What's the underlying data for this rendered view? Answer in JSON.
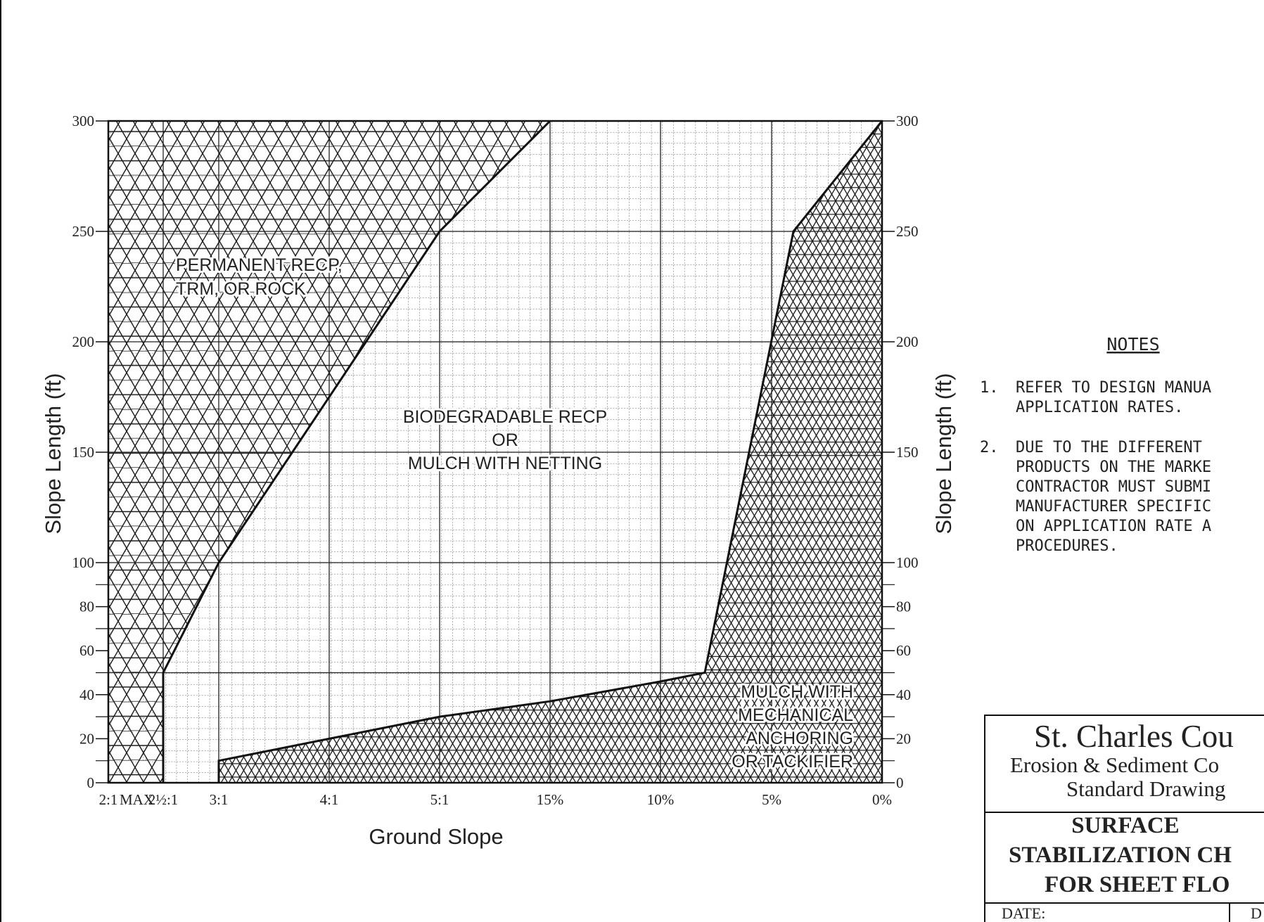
{
  "chart_data": {
    "type": "area",
    "xlabel": "Ground Slope",
    "ylabel": "Slope Length (ft)",
    "ylabel_right": "Slope Length (ft)",
    "x_ticks": [
      "2:1",
      "2½:1",
      "3:1",
      "4:1",
      "5:1",
      "15%",
      "10%",
      "5%",
      "0%"
    ],
    "x_first_tick_suffix": "MAX",
    "y_ticks": [
      0,
      20,
      40,
      60,
      80,
      100,
      150,
      200,
      250,
      300
    ],
    "ylim": [
      0,
      300
    ],
    "zones": [
      {
        "label_lines": [
          "PERMANENT RECP,",
          "TRM, OR ROCK"
        ],
        "pattern": "hexagon",
        "boundary": [
          [
            "2½:1",
            0
          ],
          [
            "2½:1",
            50
          ],
          [
            "3:1",
            100
          ],
          [
            "5:1",
            250
          ],
          [
            "15%",
            300
          ]
        ]
      },
      {
        "label_lines": [
          "BIODEGRADABLE  RECP",
          "OR",
          "MULCH  WITH  NETTING"
        ],
        "pattern": "grid",
        "boundary": []
      },
      {
        "label_lines": [
          "MULCH WITH",
          "MECHANICAL",
          "ANCHORING",
          "OR TACKIFIER"
        ],
        "pattern": "triangle",
        "boundary": [
          [
            "3:1",
            0
          ],
          [
            "3:1",
            10
          ],
          [
            "4:1",
            20
          ],
          [
            "5:1",
            30
          ],
          [
            "15%",
            37
          ],
          [
            "10%",
            46
          ],
          [
            "~8%",
            50
          ],
          [
            "~4%",
            250
          ],
          [
            "0%",
            300
          ]
        ]
      }
    ]
  },
  "notes": {
    "title": "NOTES",
    "items": [
      {
        "num": "1.",
        "lines": [
          "REFER TO DESIGN MANUA",
          "APPLICATION RATES."
        ]
      },
      {
        "num": "2.",
        "lines": [
          "DUE TO THE DIFFERENT",
          "PRODUCTS ON THE MARKE",
          "CONTRACTOR MUST SUBMI",
          "MANUFACTURER SPECIFIC",
          "ON APPLICATION RATE A",
          "PROCEDURES."
        ]
      }
    ]
  },
  "title_block": {
    "org": "St. Charles Cou",
    "line2": "Erosion & Sediment Co",
    "line3": "Standard Drawing",
    "drawing_title": [
      "SURFACE",
      "STABILIZATION CH",
      "FOR SHEET FLO"
    ],
    "date_label": "DATE:",
    "d_label": "D"
  }
}
